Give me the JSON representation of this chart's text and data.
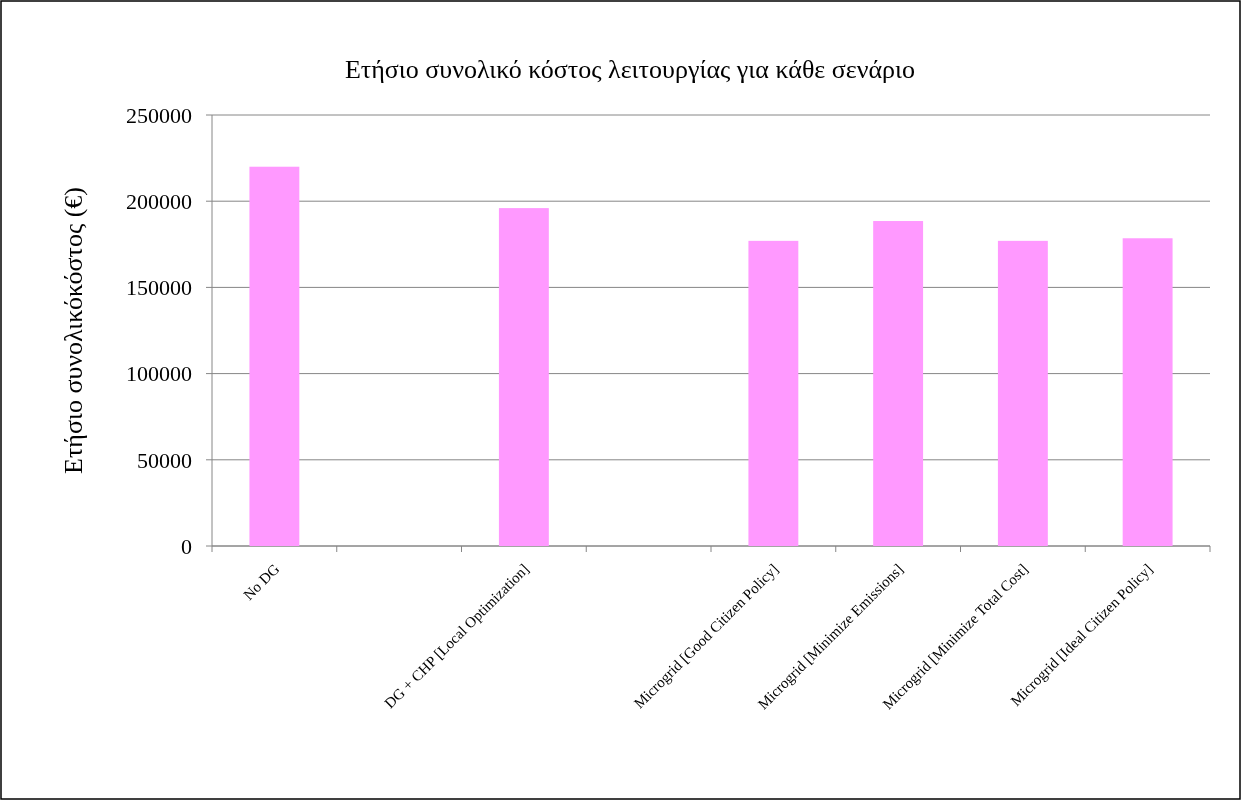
{
  "chart_data": {
    "type": "bar",
    "title": "Ετήσιο συνολικό κόστος λειτουργίας για κάθε σενάριο",
    "ylabel": "Ετήσιο συνολικόκόστος (€)",
    "categories": [
      "No DG",
      null,
      "DG + CHP [Local Optimization]",
      null,
      "Microgrid [Good Citizen Policy]",
      "Microgrid [Minimize Emissions]",
      "Microgrid [Minimize Total Cost]",
      "Microgrid [Ideal Citizen Policy]"
    ],
    "values": [
      220000,
      null,
      196000,
      null,
      177000,
      188500,
      177000,
      178500
    ],
    "color": "#ff99ff",
    "ylim": [
      0,
      250000
    ],
    "yticks": [
      0,
      50000,
      100000,
      150000,
      200000,
      250000
    ],
    "grid": "y"
  }
}
